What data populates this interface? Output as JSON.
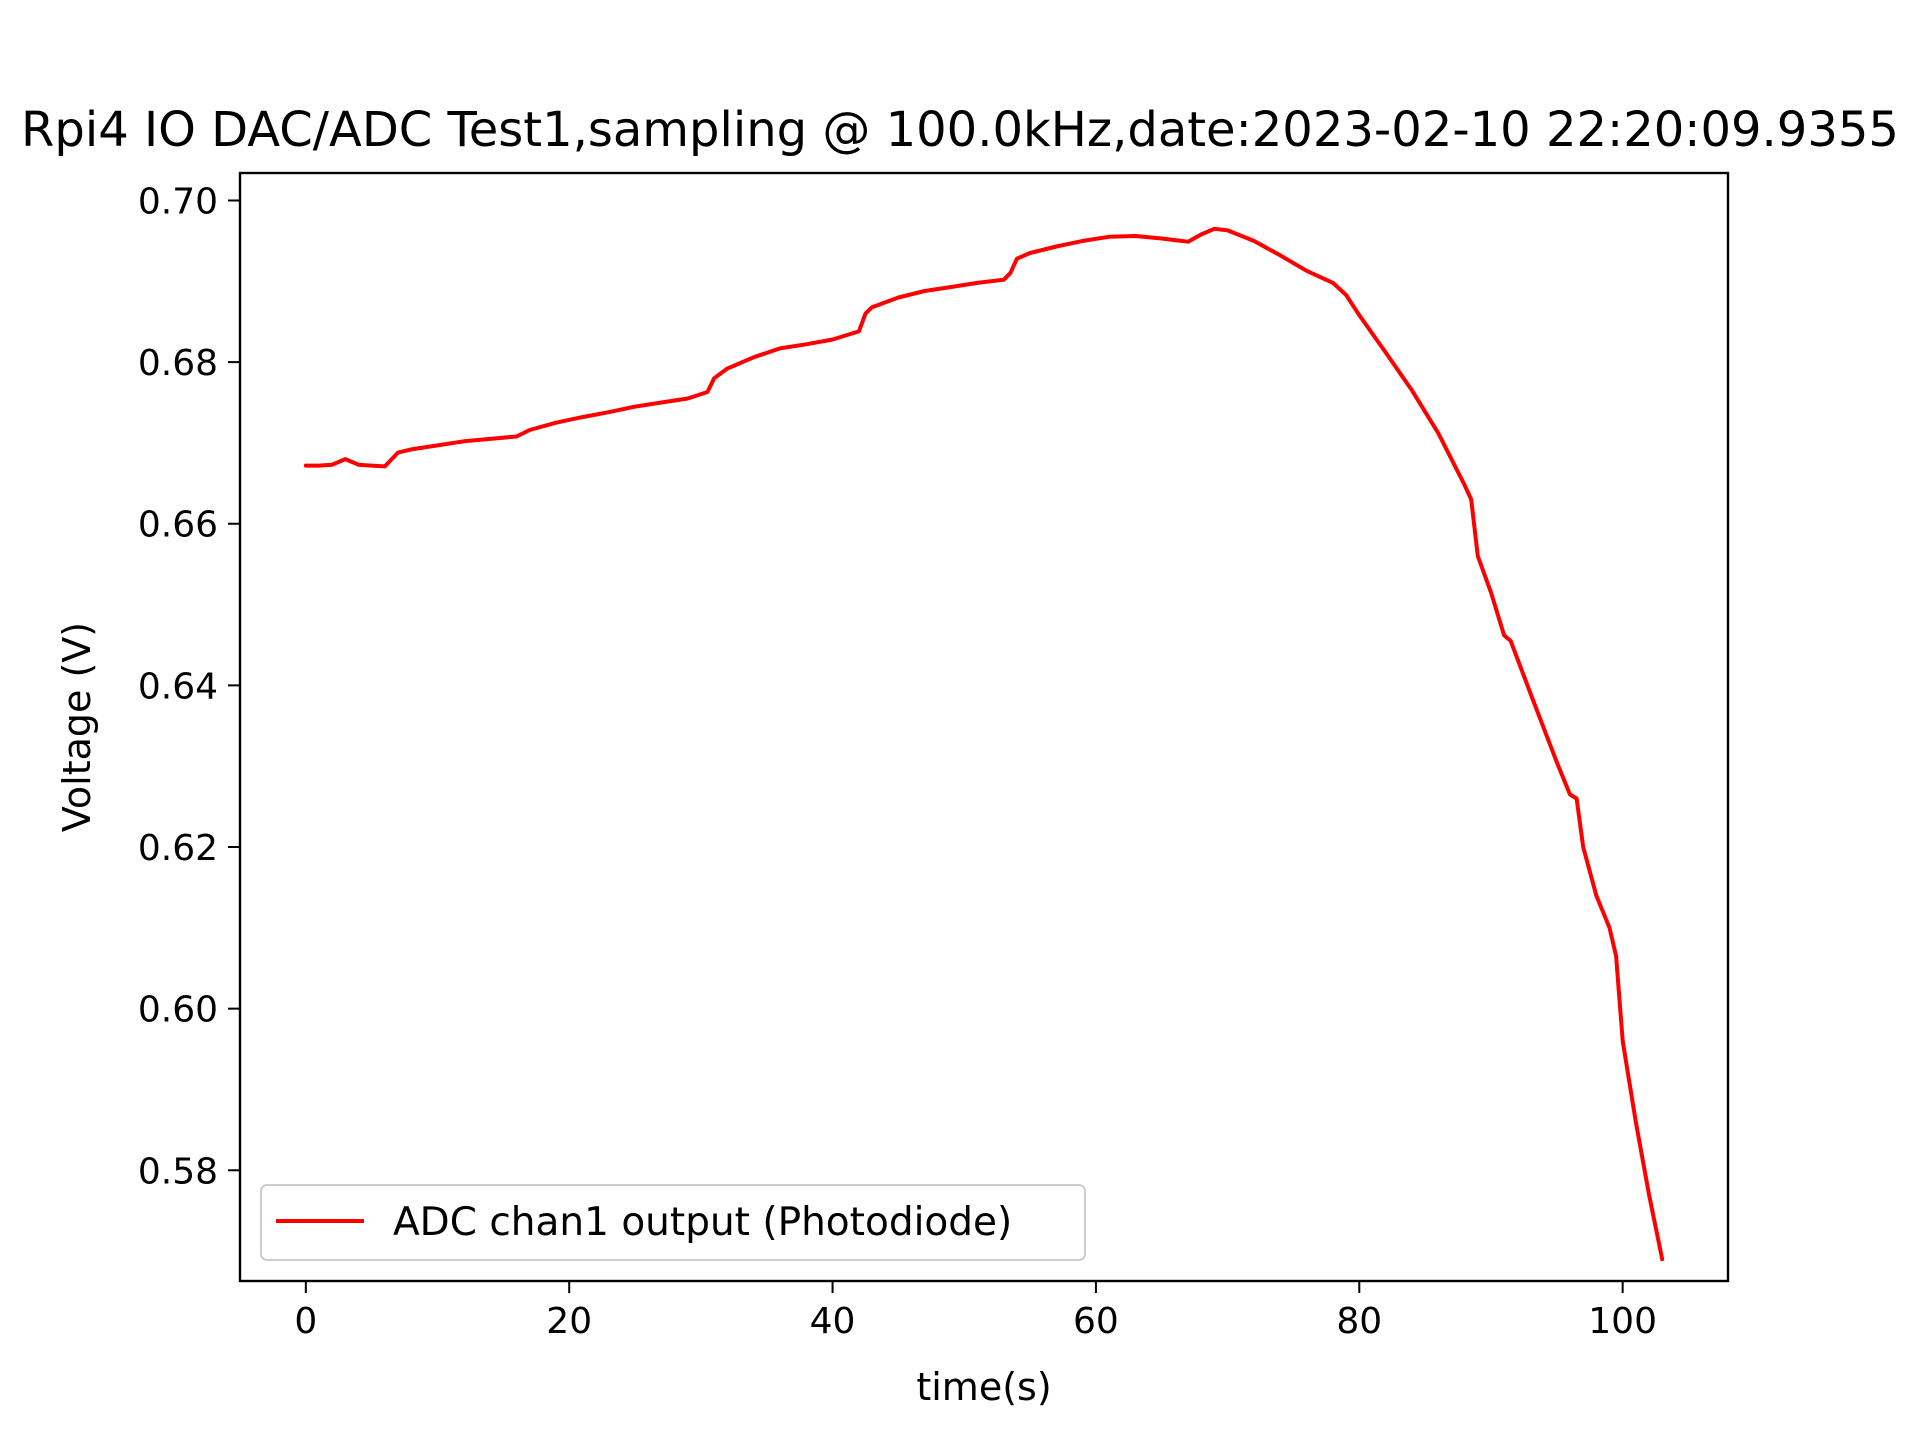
{
  "chart_data": {
    "type": "line",
    "title": "Rpi4 IO DAC/ADC Test1,sampling @ 100.0kHz,date:2023-02-10 22:20:09.9355",
    "xlabel": "time(s)",
    "ylabel": "Voltage (V)",
    "xlim": [
      -5,
      108
    ],
    "ylim": [
      0.5663,
      0.7034
    ],
    "x_ticks": [
      0,
      20,
      40,
      60,
      80,
      100
    ],
    "x_tick_labels": [
      "0",
      "20",
      "40",
      "60",
      "80",
      "100"
    ],
    "y_ticks": [
      0.58,
      0.6,
      0.62,
      0.64,
      0.66,
      0.68,
      0.7
    ],
    "y_tick_labels": [
      "0.58",
      "0.60",
      "0.62",
      "0.64",
      "0.66",
      "0.68",
      "0.70"
    ],
    "grid": false,
    "legend_position": "lower-left",
    "series": [
      {
        "name": "ADC chan1 output  (Photodiode)",
        "color": "#ff0000",
        "x": [
          0,
          1,
          2,
          3,
          4,
          5,
          6,
          7,
          8,
          10,
          12,
          14,
          16,
          17,
          19,
          21,
          23,
          25,
          27,
          29,
          30.5,
          31,
          32,
          34,
          36,
          38,
          40,
          42,
          42.5,
          43,
          45,
          47,
          49,
          51,
          53,
          53.5,
          54,
          55,
          57,
          59,
          61,
          63,
          65,
          66,
          67,
          68,
          69,
          70,
          72,
          74,
          76,
          78,
          79,
          80,
          82,
          84,
          86,
          88,
          88.5,
          89,
          90,
          91,
          91.5,
          93,
          95,
          96,
          96.5,
          97,
          98,
          99,
          99.5,
          100,
          101,
          102,
          103
        ],
        "y": [
          0.6672,
          0.6672,
          0.6673,
          0.668,
          0.6673,
          0.6672,
          0.6671,
          0.6688,
          0.6692,
          0.6697,
          0.6702,
          0.6705,
          0.6708,
          0.6716,
          0.6725,
          0.6732,
          0.6738,
          0.6745,
          0.675,
          0.6755,
          0.6763,
          0.678,
          0.6792,
          0.6806,
          0.6817,
          0.6822,
          0.6828,
          0.6838,
          0.686,
          0.6868,
          0.688,
          0.6888,
          0.6893,
          0.6898,
          0.6902,
          0.691,
          0.6928,
          0.6935,
          0.6943,
          0.695,
          0.6955,
          0.6956,
          0.6953,
          0.6951,
          0.6949,
          0.6958,
          0.6965,
          0.6963,
          0.695,
          0.6932,
          0.6913,
          0.6898,
          0.6883,
          0.6858,
          0.6812,
          0.6765,
          0.6712,
          0.6648,
          0.663,
          0.656,
          0.6515,
          0.6462,
          0.6455,
          0.639,
          0.6305,
          0.6265,
          0.626,
          0.62,
          0.614,
          0.61,
          0.6065,
          0.596,
          0.586,
          0.577,
          0.569
        ]
      }
    ]
  }
}
